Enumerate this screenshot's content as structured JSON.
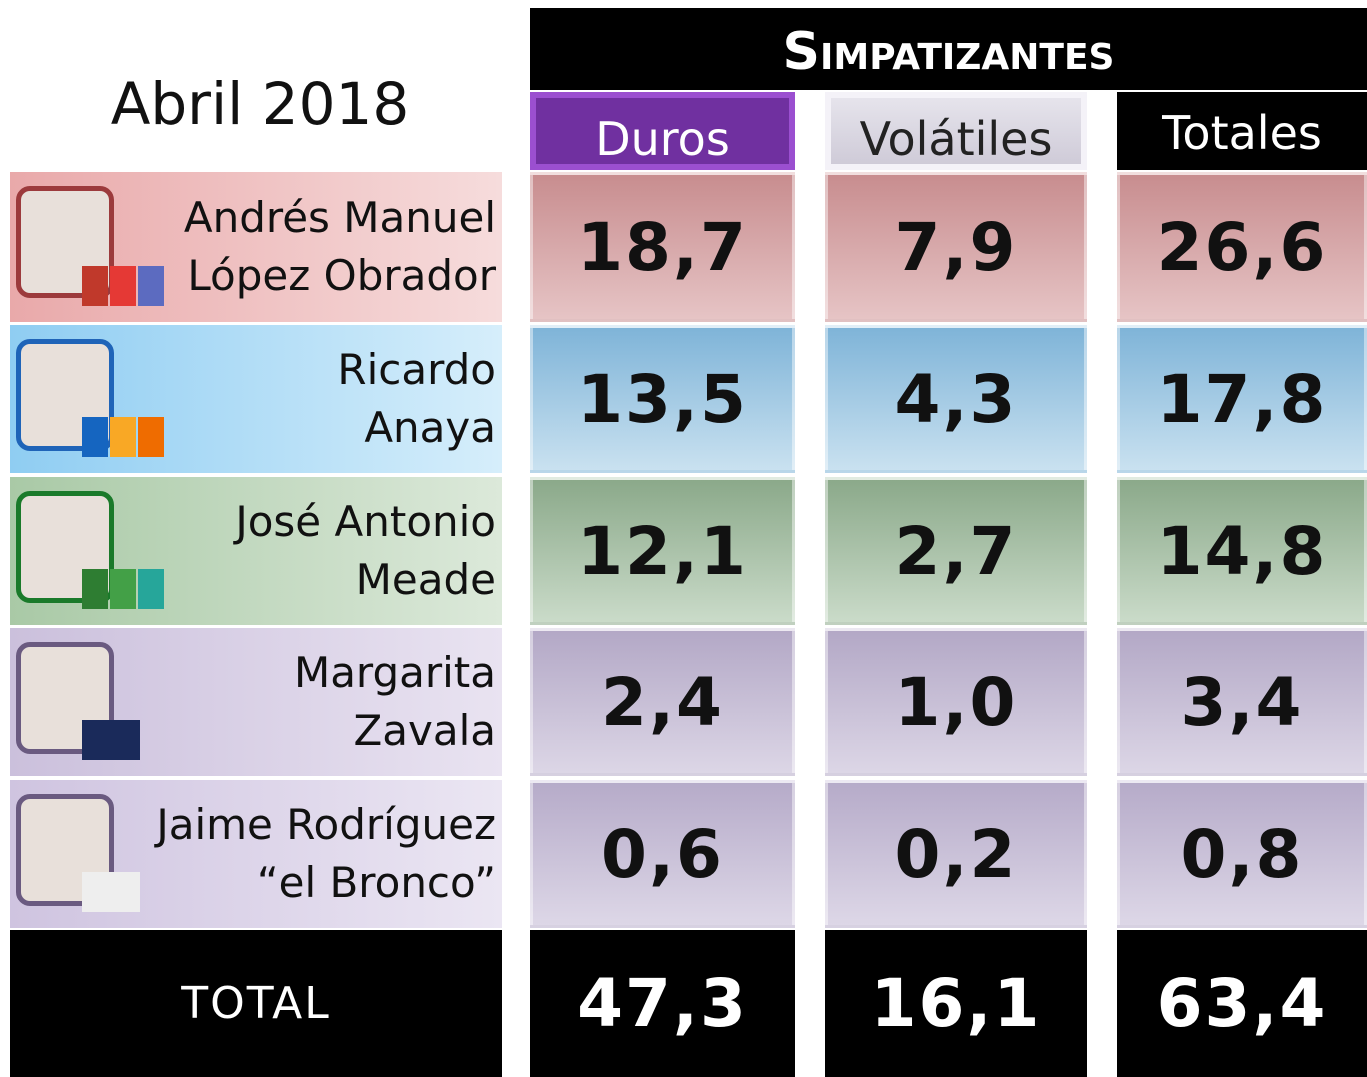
{
  "title": "Abril 2018",
  "header": "Simpatizantes",
  "columns": [
    "Duros",
    "Volátiles",
    "Totales"
  ],
  "rows": [
    {
      "name": [
        "Andrés Manuel",
        "López Obrador"
      ],
      "values": [
        "18,7",
        "7,9",
        "26,6"
      ]
    },
    {
      "name": [
        "Ricardo",
        "Anaya"
      ],
      "values": [
        "13,5",
        "4,3",
        "17,8"
      ]
    },
    {
      "name": [
        "José Antonio",
        "Meade"
      ],
      "values": [
        "12,1",
        "2,7",
        "14,8"
      ]
    },
    {
      "name": [
        "Margarita",
        "Zavala"
      ],
      "values": [
        "2,4",
        "1,0",
        "3,4"
      ]
    },
    {
      "name": [
        "Jaime Rodríguez",
        "“el Bronco”"
      ],
      "values": [
        "0,6",
        "0,2",
        "0,8"
      ]
    }
  ],
  "total": {
    "label": "TOTAL",
    "values": [
      "47,3",
      "16,1",
      "63,4"
    ]
  }
}
